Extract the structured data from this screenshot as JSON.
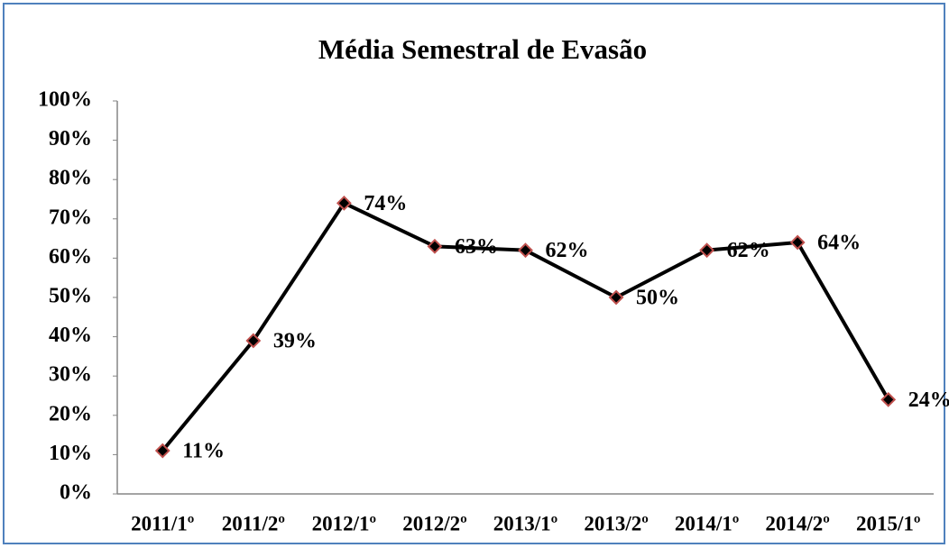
{
  "chart_data": {
    "type": "line",
    "title": "Média Semestral de Evasão",
    "categories": [
      "2011/1º",
      "2011/2º",
      "2012/1º",
      "2012/2º",
      "2013/1º",
      "2013/2º",
      "2014/1º",
      "2014/2º",
      "2015/1º"
    ],
    "series": [
      {
        "name": "Média Semestral de Evasão",
        "color": "#000000",
        "marker_edge_color": "#c0504d",
        "values": [
          11,
          39,
          74,
          63,
          62,
          50,
          62,
          64,
          24
        ],
        "value_labels": [
          "11%",
          "39%",
          "74%",
          "63%",
          "62%",
          "50%",
          "62%",
          "64%",
          "24%"
        ]
      }
    ],
    "ylim": [
      0,
      100
    ],
    "yticks": [
      {
        "value": 0,
        "label": "0%"
      },
      {
        "value": 10,
        "label": "10%"
      },
      {
        "value": 20,
        "label": "20%"
      },
      {
        "value": 30,
        "label": "30%"
      },
      {
        "value": 40,
        "label": "40%"
      },
      {
        "value": 50,
        "label": "50%"
      },
      {
        "value": 60,
        "label": "60%"
      },
      {
        "value": 70,
        "label": "70%"
      },
      {
        "value": 80,
        "label": "80%"
      },
      {
        "value": 90,
        "label": "90%"
      },
      {
        "value": 100,
        "label": "100%"
      }
    ],
    "grid": false,
    "legend": false
  }
}
